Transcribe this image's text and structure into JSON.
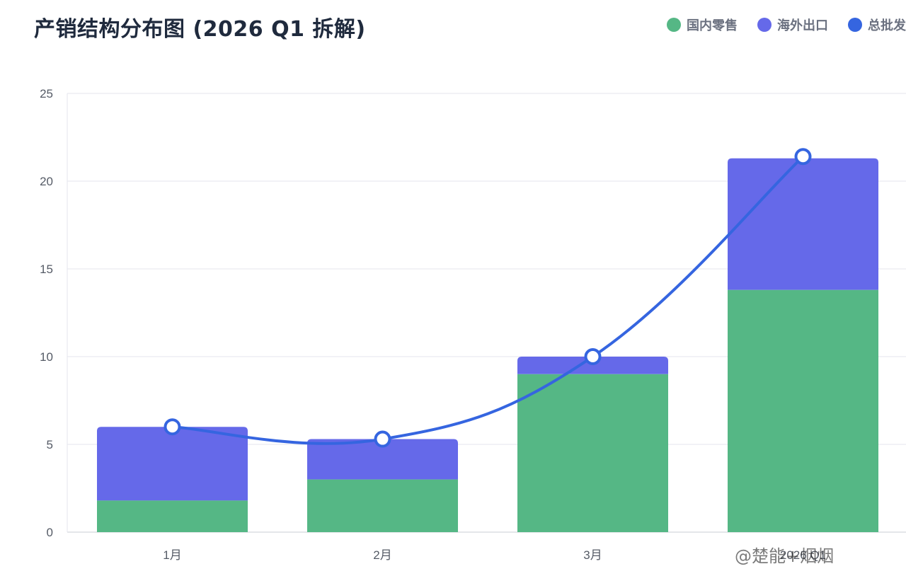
{
  "chart_data": {
    "type": "bar",
    "title": "产销结构分布图 (2026 Q1 拆解)",
    "categories": [
      "1月",
      "2月",
      "3月",
      "2026 Q1"
    ],
    "series": [
      {
        "name": "国内零售",
        "type": "bar",
        "stack": "total",
        "values": [
          1.8,
          3.0,
          9.0,
          13.8
        ]
      },
      {
        "name": "海外出口",
        "type": "bar",
        "stack": "total",
        "values": [
          4.2,
          2.3,
          1.0,
          7.5
        ]
      },
      {
        "name": "总批发",
        "type": "line",
        "values": [
          6.0,
          5.3,
          10.0,
          21.4
        ]
      }
    ],
    "ylim": [
      0,
      25
    ],
    "yticks": [
      0,
      5,
      10,
      15,
      20,
      25
    ],
    "grid": true,
    "legend": "top-right",
    "colors": {
      "domestic": "#55b785",
      "export": "#6569e9",
      "total": "#3565e0"
    }
  },
  "watermark": "@楚能+烟烟"
}
